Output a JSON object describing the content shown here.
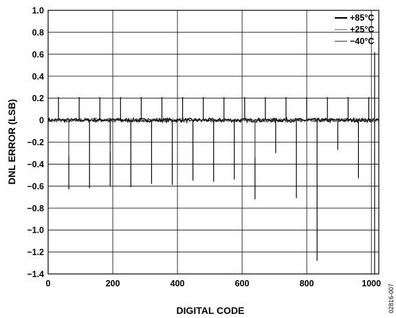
{
  "chart_data": {
    "type": "line",
    "title": "",
    "xlabel": "DIGITAL CODE",
    "ylabel": "DNL ERROR (LSB)",
    "xlim": [
      0,
      1023
    ],
    "ylim": [
      -1.4,
      1.0
    ],
    "grid": true,
    "legend_position": "top-right",
    "x_ticks": [
      0,
      200,
      400,
      600,
      800,
      1000
    ],
    "x_tick_labels": [
      "0",
      "200",
      "400",
      "600",
      "800",
      "1000"
    ],
    "y_ticks": [
      1.0,
      0.8,
      0.6,
      0.4,
      0.2,
      0,
      -0.2,
      -0.4,
      -0.6,
      -0.8,
      -1.0,
      -1.2,
      -1.4
    ],
    "y_tick_labels": [
      "1.0",
      "0.8",
      "0.6",
      "0.4",
      "0.2",
      "0",
      "−0.2",
      "−0.4",
      "−0.6",
      "−0.8",
      "−1.0",
      "−1.2",
      "−1.4"
    ],
    "series": [
      {
        "name": "+85°C",
        "color": "#000000",
        "baseline": 0,
        "spikes": [
          [
            32,
            0.21
          ],
          [
            64,
            -0.63
          ],
          [
            96,
            0.21
          ],
          [
            128,
            -0.62
          ],
          [
            160,
            0.21
          ],
          [
            192,
            -0.6
          ],
          [
            224,
            0.21
          ],
          [
            256,
            -0.61
          ],
          [
            288,
            0.21
          ],
          [
            320,
            -0.58
          ],
          [
            352,
            0.21
          ],
          [
            384,
            -0.59
          ],
          [
            416,
            0.21
          ],
          [
            448,
            -0.55
          ],
          [
            480,
            0.21
          ],
          [
            512,
            -0.56
          ],
          [
            544,
            0.21
          ],
          [
            576,
            -0.54
          ],
          [
            608,
            0.21
          ],
          [
            640,
            -0.72
          ],
          [
            672,
            0.21
          ],
          [
            704,
            -0.3
          ],
          [
            736,
            0.21
          ],
          [
            768,
            -0.71
          ],
          [
            800,
            0.21
          ],
          [
            832,
            -1.28
          ],
          [
            864,
            0.21
          ],
          [
            896,
            -0.27
          ],
          [
            928,
            0.21
          ],
          [
            960,
            -0.53
          ],
          [
            992,
            0.21
          ],
          [
            1010,
            0.62
          ],
          [
            1010,
            -1.4
          ]
        ]
      },
      {
        "name": "+25°C",
        "color": "#555555",
        "baseline": 0,
        "spikes": [
          [
            64,
            -0.33
          ],
          [
            192,
            -0.28
          ],
          [
            640,
            -0.34
          ]
        ]
      },
      {
        "name": "−40°C",
        "color": "#222222",
        "baseline": 0,
        "spikes": [
          [
            192,
            -0.22
          ],
          [
            832,
            -0.6
          ]
        ]
      }
    ]
  },
  "figure_id": "02816-007"
}
